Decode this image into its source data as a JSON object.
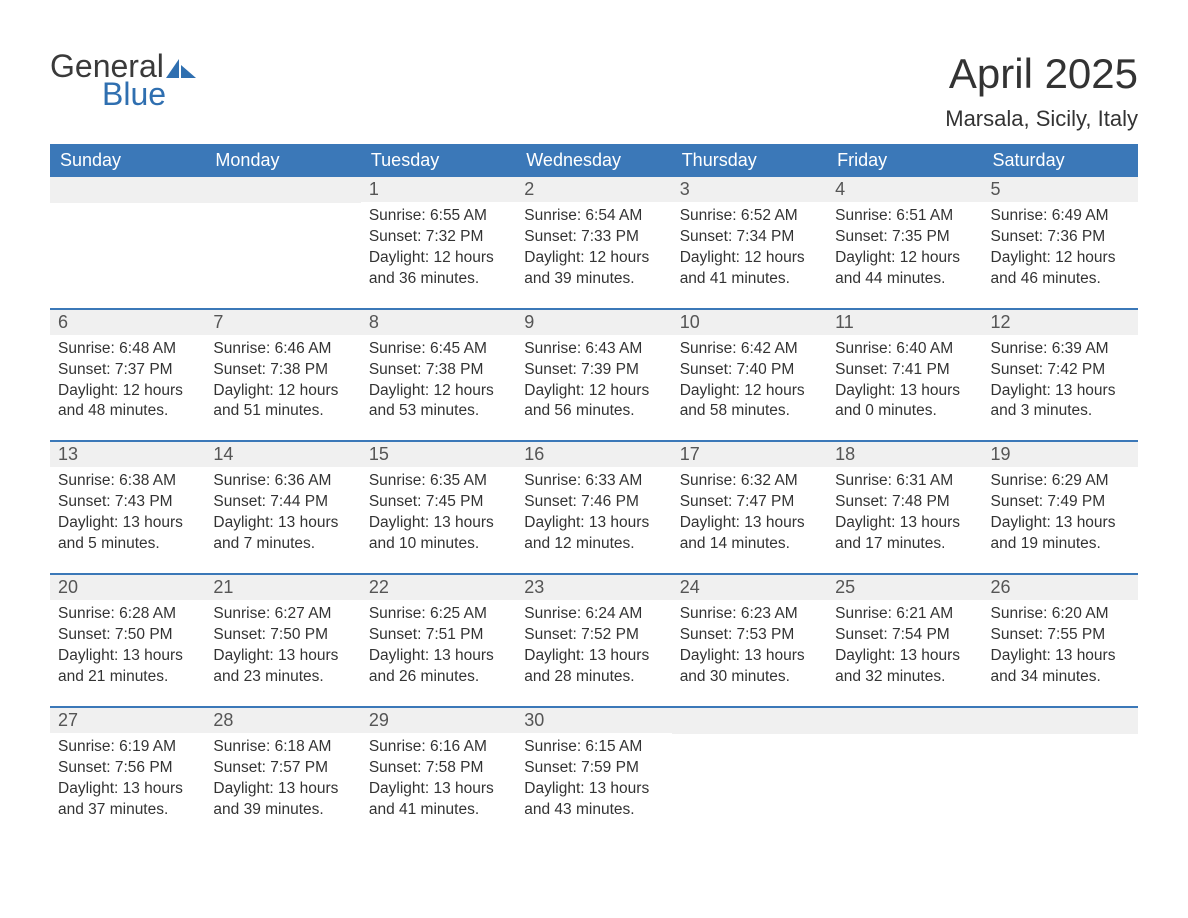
{
  "brand": {
    "word1": "General",
    "word2": "Blue",
    "accent_color": "#2f6fb0"
  },
  "title": "April 2025",
  "location": "Marsala, Sicily, Italy",
  "colors": {
    "header_bg": "#3b78b8",
    "header_text": "#ffffff",
    "daynum_bg": "#f0f0f0",
    "text": "#333333",
    "page_bg": "#ffffff"
  },
  "typography": {
    "title_fontsize_pt": 32,
    "location_fontsize_pt": 17,
    "header_fontsize_pt": 14,
    "body_fontsize_pt": 12
  },
  "layout": {
    "columns": [
      "Sunday",
      "Monday",
      "Tuesday",
      "Wednesday",
      "Thursday",
      "Friday",
      "Saturday"
    ],
    "first_day_column_index": 2,
    "days_in_month": 30
  },
  "days": {
    "1": {
      "sunrise": "6:55 AM",
      "sunset": "7:32 PM",
      "daylight": "12 hours and 36 minutes."
    },
    "2": {
      "sunrise": "6:54 AM",
      "sunset": "7:33 PM",
      "daylight": "12 hours and 39 minutes."
    },
    "3": {
      "sunrise": "6:52 AM",
      "sunset": "7:34 PM",
      "daylight": "12 hours and 41 minutes."
    },
    "4": {
      "sunrise": "6:51 AM",
      "sunset": "7:35 PM",
      "daylight": "12 hours and 44 minutes."
    },
    "5": {
      "sunrise": "6:49 AM",
      "sunset": "7:36 PM",
      "daylight": "12 hours and 46 minutes."
    },
    "6": {
      "sunrise": "6:48 AM",
      "sunset": "7:37 PM",
      "daylight": "12 hours and 48 minutes."
    },
    "7": {
      "sunrise": "6:46 AM",
      "sunset": "7:38 PM",
      "daylight": "12 hours and 51 minutes."
    },
    "8": {
      "sunrise": "6:45 AM",
      "sunset": "7:38 PM",
      "daylight": "12 hours and 53 minutes."
    },
    "9": {
      "sunrise": "6:43 AM",
      "sunset": "7:39 PM",
      "daylight": "12 hours and 56 minutes."
    },
    "10": {
      "sunrise": "6:42 AM",
      "sunset": "7:40 PM",
      "daylight": "12 hours and 58 minutes."
    },
    "11": {
      "sunrise": "6:40 AM",
      "sunset": "7:41 PM",
      "daylight": "13 hours and 0 minutes."
    },
    "12": {
      "sunrise": "6:39 AM",
      "sunset": "7:42 PM",
      "daylight": "13 hours and 3 minutes."
    },
    "13": {
      "sunrise": "6:38 AM",
      "sunset": "7:43 PM",
      "daylight": "13 hours and 5 minutes."
    },
    "14": {
      "sunrise": "6:36 AM",
      "sunset": "7:44 PM",
      "daylight": "13 hours and 7 minutes."
    },
    "15": {
      "sunrise": "6:35 AM",
      "sunset": "7:45 PM",
      "daylight": "13 hours and 10 minutes."
    },
    "16": {
      "sunrise": "6:33 AM",
      "sunset": "7:46 PM",
      "daylight": "13 hours and 12 minutes."
    },
    "17": {
      "sunrise": "6:32 AM",
      "sunset": "7:47 PM",
      "daylight": "13 hours and 14 minutes."
    },
    "18": {
      "sunrise": "6:31 AM",
      "sunset": "7:48 PM",
      "daylight": "13 hours and 17 minutes."
    },
    "19": {
      "sunrise": "6:29 AM",
      "sunset": "7:49 PM",
      "daylight": "13 hours and 19 minutes."
    },
    "20": {
      "sunrise": "6:28 AM",
      "sunset": "7:50 PM",
      "daylight": "13 hours and 21 minutes."
    },
    "21": {
      "sunrise": "6:27 AM",
      "sunset": "7:50 PM",
      "daylight": "13 hours and 23 minutes."
    },
    "22": {
      "sunrise": "6:25 AM",
      "sunset": "7:51 PM",
      "daylight": "13 hours and 26 minutes."
    },
    "23": {
      "sunrise": "6:24 AM",
      "sunset": "7:52 PM",
      "daylight": "13 hours and 28 minutes."
    },
    "24": {
      "sunrise": "6:23 AM",
      "sunset": "7:53 PM",
      "daylight": "13 hours and 30 minutes."
    },
    "25": {
      "sunrise": "6:21 AM",
      "sunset": "7:54 PM",
      "daylight": "13 hours and 32 minutes."
    },
    "26": {
      "sunrise": "6:20 AM",
      "sunset": "7:55 PM",
      "daylight": "13 hours and 34 minutes."
    },
    "27": {
      "sunrise": "6:19 AM",
      "sunset": "7:56 PM",
      "daylight": "13 hours and 37 minutes."
    },
    "28": {
      "sunrise": "6:18 AM",
      "sunset": "7:57 PM",
      "daylight": "13 hours and 39 minutes."
    },
    "29": {
      "sunrise": "6:16 AM",
      "sunset": "7:58 PM",
      "daylight": "13 hours and 41 minutes."
    },
    "30": {
      "sunrise": "6:15 AM",
      "sunset": "7:59 PM",
      "daylight": "13 hours and 43 minutes."
    }
  },
  "labels": {
    "sunrise": "Sunrise: ",
    "sunset": "Sunset: ",
    "daylight": "Daylight: "
  }
}
